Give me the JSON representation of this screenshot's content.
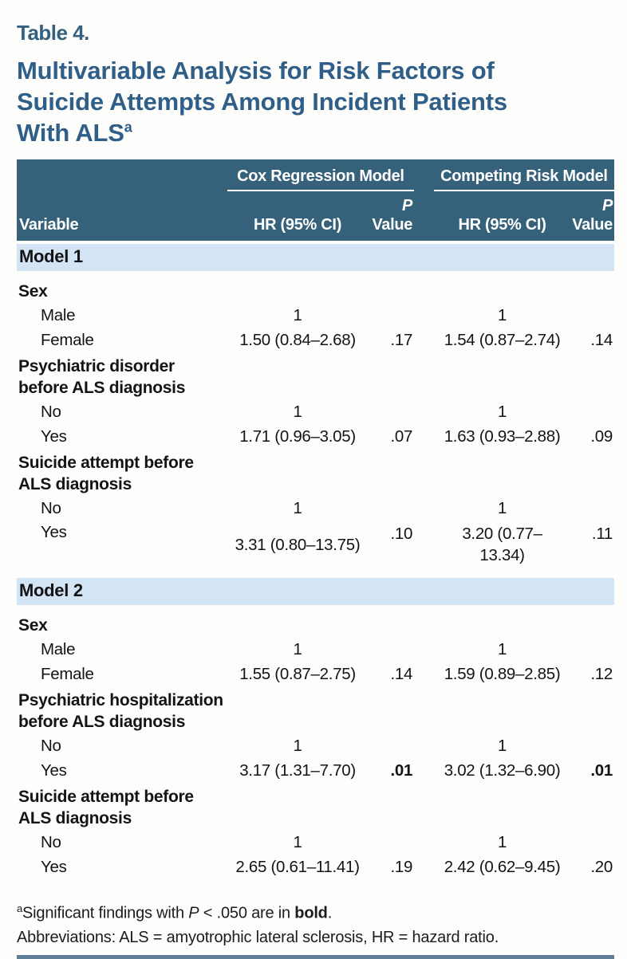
{
  "theme": {
    "header_bg": "#36617b",
    "band_bg": "#d3e5f5",
    "title_color": "#2f5f88",
    "label_color": "#33617e",
    "rule_color": "#5e7e98",
    "page_bg": "#fdfdfb"
  },
  "page": {
    "table_label": "Table 4.",
    "title_lines": [
      "Multivariable Analysis for Risk Factors of",
      "Suicide Attempts Among Incident Patients",
      "With ALS"
    ],
    "title_superscript": "a"
  },
  "table": {
    "group_headers": [
      "Cox Regression Model",
      "Competing Risk Model"
    ],
    "col_headers": {
      "variable": "Variable",
      "hr": "HR (95% CI)",
      "p_line1": "P",
      "p_line2": "Value"
    }
  },
  "m1": {
    "model_label": "Model 1",
    "sex_label": "Sex",
    "sex": {
      "male": {
        "label": "Male",
        "hr1": "1",
        "hr2": "1"
      },
      "female": {
        "label": "Female",
        "hr1": "1.50 (0.84–2.68)",
        "p1": ".17",
        "hr2": "1.54 (0.87–2.74)",
        "p2": ".14"
      }
    },
    "psych": {
      "label1": "Psychiatric disorder",
      "label2": "before ALS diagnosis",
      "no": {
        "label": "No",
        "hr1": "1",
        "hr2": "1"
      },
      "yes": {
        "label": "Yes",
        "hr1": "1.71 (0.96–3.05)",
        "p1": ".07",
        "hr2": "1.63 (0.93–2.88)",
        "p2": ".09"
      }
    },
    "suicide": {
      "label1": "Suicide attempt before",
      "label2": "ALS diagnosis",
      "no": {
        "label": "No",
        "hr1": "1",
        "hr2": "1"
      },
      "yes": {
        "label": "Yes",
        "hr1": "3.31 (0.80–13.75)",
        "p1": ".10",
        "hr2_line1": "3.20 (0.77–",
        "hr2_line2": "13.34)",
        "p2": ".11"
      }
    }
  },
  "m2": {
    "model_label": "Model 2",
    "sex_label": "Sex",
    "sex": {
      "male": {
        "label": "Male",
        "hr1": "1",
        "hr2": "1"
      },
      "female": {
        "label": "Female",
        "hr1": "1.55 (0.87–2.75)",
        "p1": ".14",
        "hr2": "1.59 (0.89–2.85)",
        "p2": ".12"
      }
    },
    "hosp": {
      "label1": "Psychiatric hospitalization",
      "label2": "before ALS diagnosis",
      "no": {
        "label": "No",
        "hr1": "1",
        "hr2": "1"
      },
      "yes": {
        "label": "Yes",
        "hr1": "3.17 (1.31–7.70)",
        "p1": ".01",
        "hr2": "3.02 (1.32–6.90)",
        "p2": ".01"
      }
    },
    "suicide": {
      "label1": "Suicide attempt before",
      "label2": "ALS diagnosis",
      "no": {
        "label": "No",
        "hr1": "1",
        "hr2": "1"
      },
      "yes": {
        "label": "Yes",
        "hr1": "2.65 (0.61–11.41)",
        "p1": ".19",
        "hr2": "2.42 (0.62–9.45)",
        "p2": ".20"
      }
    }
  },
  "footnotes": {
    "marker": "a",
    "fn1_part1": "Significant findings with ",
    "fn1_italic": "P",
    "fn1_part2": " < .050 are in ",
    "fn1_bold": "bold",
    "fn1_part3": ".",
    "fn2": "Abbreviations: ALS = amyotrophic lateral sclerosis, HR = hazard ratio."
  }
}
